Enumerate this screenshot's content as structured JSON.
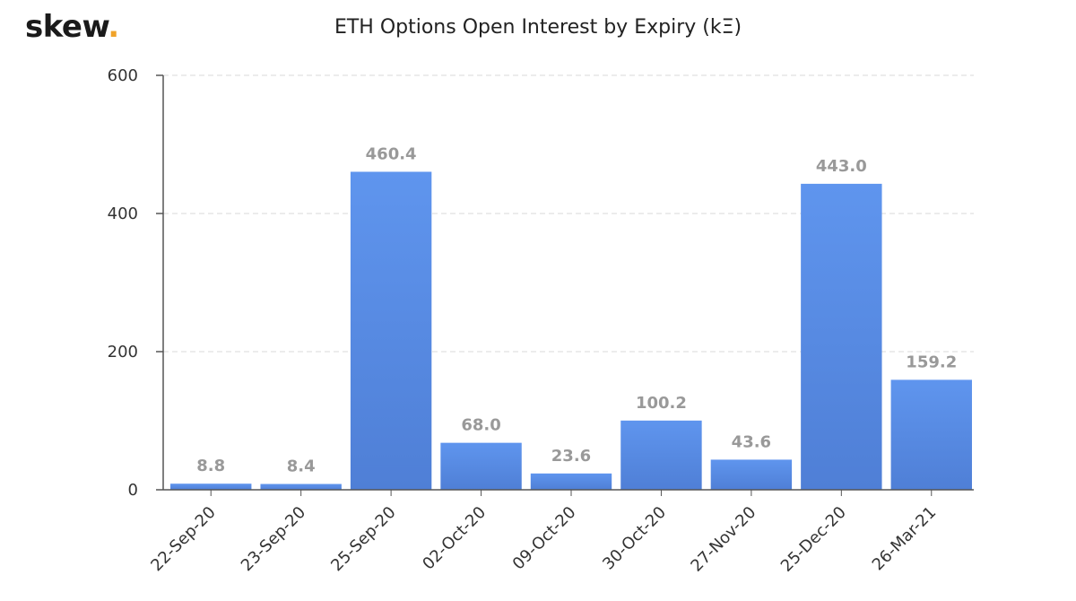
{
  "brand": {
    "name": "skew",
    "dot": "."
  },
  "colors": {
    "bar_top": "#5f95ee",
    "bar_bottom": "#4f7fd6",
    "brand_dot": "#f0a329"
  },
  "chart_data": {
    "type": "bar",
    "title": "ETH Options Open Interest by Expiry (kΞ)",
    "xlabel": "",
    "ylabel": "",
    "categories": [
      "22-Sep-20",
      "23-Sep-20",
      "25-Sep-20",
      "02-Oct-20",
      "09-Oct-20",
      "30-Oct-20",
      "27-Nov-20",
      "25-Dec-20",
      "26-Mar-21"
    ],
    "values": [
      8.8,
      8.4,
      460.4,
      68.0,
      23.6,
      100.2,
      43.6,
      443.0,
      159.2
    ],
    "data_labels": [
      "8.8",
      "8.4",
      "460.4",
      "68.0",
      "23.6",
      "100.2",
      "43.6",
      "443.0",
      "159.2"
    ],
    "ylim": [
      0,
      600
    ],
    "yticks": [
      0,
      200,
      400,
      600
    ],
    "grid": true,
    "legend": "none"
  }
}
